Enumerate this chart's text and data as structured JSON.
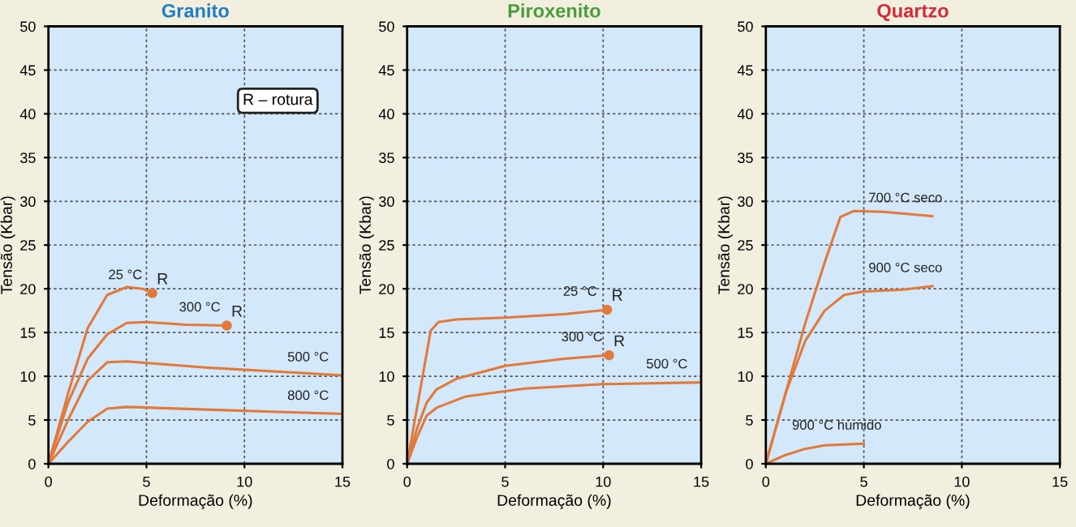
{
  "chart_data": [
    {
      "type": "line",
      "title": "Granito",
      "xlabel": "Deformação (%)",
      "ylabel": "Tensão (Kbar)",
      "xlim": [
        0,
        15
      ],
      "ylim": [
        0,
        50
      ],
      "xticks": [
        0,
        5,
        10,
        15
      ],
      "yticks": [
        0,
        5,
        10,
        15,
        20,
        25,
        30,
        35,
        40,
        45,
        50
      ],
      "grid": true,
      "marker": "none",
      "line_style": "solid",
      "series": [
        {
          "name": "25 °C",
          "color": "#e0793a",
          "x": [
            0,
            1,
            2,
            3,
            4,
            4.8,
            5.3
          ],
          "values": [
            0,
            8,
            15.5,
            19.3,
            20.2,
            20,
            19.5
          ]
        },
        {
          "name": "300 °C",
          "color": "#e0793a",
          "x": [
            0,
            1,
            2,
            3,
            4,
            5,
            7,
            9.1
          ],
          "values": [
            0,
            7,
            12,
            14.8,
            16.1,
            16.2,
            15.9,
            15.8
          ]
        },
        {
          "name": "500 °C",
          "color": "#e0793a",
          "x": [
            0,
            1,
            2,
            3,
            4,
            8,
            12,
            15
          ],
          "values": [
            0,
            5,
            9.5,
            11.6,
            11.7,
            11,
            10.5,
            10.1
          ]
        },
        {
          "name": "800 °C",
          "color": "#e0793a",
          "x": [
            0,
            1,
            2,
            3,
            4,
            8,
            12,
            15
          ],
          "values": [
            0,
            2.5,
            4.8,
            6.3,
            6.5,
            6.2,
            5.9,
            5.7
          ]
        }
      ],
      "annotations": [
        "R – rotura",
        {
          "text": "R",
          "x": 5.3,
          "y": 19.5
        },
        {
          "text": "R",
          "x": 9.1,
          "y": 15.8
        }
      ]
    },
    {
      "type": "line",
      "title": "Piroxenito",
      "xlabel": "Deformação (%)",
      "ylabel": "Tensão (Kbar)",
      "xlim": [
        0,
        15
      ],
      "ylim": [
        0,
        50
      ],
      "xticks": [
        0,
        5,
        10,
        15
      ],
      "yticks": [
        0,
        5,
        10,
        15,
        20,
        25,
        30,
        35,
        40,
        45,
        50
      ],
      "grid": true,
      "marker": "none",
      "line_style": "solid",
      "series": [
        {
          "name": "25 °C",
          "color": "#e0793a",
          "x": [
            0,
            1.2,
            1.6,
            2.5,
            5,
            8,
            10.2
          ],
          "values": [
            0,
            15.2,
            16.2,
            16.5,
            16.7,
            17.1,
            17.6
          ]
        },
        {
          "name": "300 °C",
          "color": "#e0793a",
          "x": [
            0,
            0.5,
            1,
            1.5,
            2.5,
            5,
            8,
            10.3
          ],
          "values": [
            0,
            4,
            7,
            8.5,
            9.7,
            11.2,
            12,
            12.4
          ]
        },
        {
          "name": "500 °C",
          "color": "#e0793a",
          "x": [
            0,
            0.5,
            1,
            1.5,
            3,
            6,
            10,
            15
          ],
          "values": [
            0,
            3,
            5.5,
            6.4,
            7.7,
            8.6,
            9.1,
            9.3
          ]
        }
      ],
      "annotations": [
        {
          "text": "R",
          "x": 10.2,
          "y": 17.6
        },
        {
          "text": "R",
          "x": 10.3,
          "y": 12.4
        }
      ]
    },
    {
      "type": "line",
      "title": "Quartzo",
      "xlabel": "Deformação (%)",
      "ylabel": "Tensão (Kbar)",
      "xlim": [
        0,
        15
      ],
      "ylim": [
        0,
        50
      ],
      "xticks": [
        0,
        5,
        10,
        15
      ],
      "yticks": [
        0,
        5,
        10,
        15,
        20,
        25,
        30,
        35,
        40,
        45,
        50
      ],
      "grid": true,
      "marker": "none",
      "line_style": "solid",
      "series": [
        {
          "name": "700 °C seco",
          "color": "#e0793a",
          "x": [
            0,
            1,
            2,
            3,
            3.8,
            4.5,
            6,
            8.5
          ],
          "values": [
            0,
            8,
            16,
            23,
            28.2,
            28.9,
            28.8,
            28.3
          ]
        },
        {
          "name": "900 °C seco",
          "color": "#e0793a",
          "x": [
            0,
            1,
            2,
            3,
            4,
            5,
            7,
            8.5
          ],
          "values": [
            0,
            8,
            14,
            17.5,
            19.3,
            19.7,
            19.9,
            20.3
          ]
        },
        {
          "name": "900 °C húmido",
          "color": "#e0793a",
          "x": [
            0,
            1,
            2,
            3,
            4,
            5
          ],
          "values": [
            0,
            1,
            1.7,
            2.1,
            2.2,
            2.3
          ]
        }
      ]
    }
  ]
}
